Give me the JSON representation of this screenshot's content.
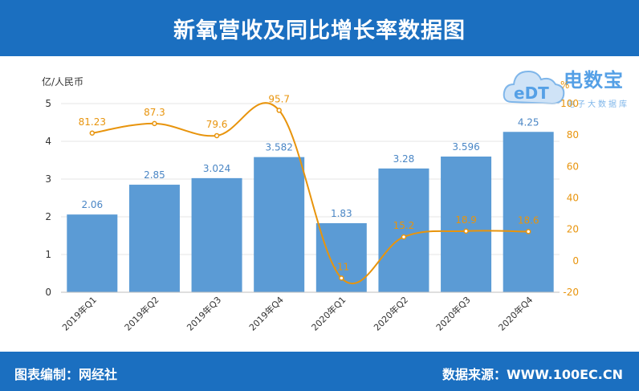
{
  "header": {
    "title": "新氧营收及同比增长率数据图"
  },
  "footer": {
    "left": "图表编制：网经社",
    "right": "数据来源：WWW.100EC.CN"
  },
  "logo": {
    "main": "电数宝",
    "sub": "电子大数据库",
    "badge": "eDT"
  },
  "colors": {
    "bar": "#5b9bd5",
    "line": "#e8940c",
    "header": "#1b6fc0"
  },
  "chart_data": {
    "type": "bar",
    "categories": [
      "2019年Q1",
      "2019年Q2",
      "2019年Q3",
      "2019年Q4",
      "2020年Q1",
      "2020年Q2",
      "2020年Q3",
      "2020年Q4"
    ],
    "series": [
      {
        "values": [
          2.06,
          2.85,
          3.024,
          3.582,
          1.83,
          3.28,
          3.596,
          4.25
        ],
        "labels": [
          "2.06",
          "2.85",
          "3.024",
          "3.582",
          "1.83",
          "3.28",
          "3.596",
          "4.25"
        ],
        "axis": "left",
        "type": "bar"
      },
      {
        "values": [
          81.23,
          87.3,
          79.6,
          95.7,
          -11,
          15.2,
          18.9,
          18.6
        ],
        "labels": [
          "81.23",
          "87.3",
          "79.6",
          "95.7",
          "-11",
          "15.2",
          "18.9",
          "18.6"
        ],
        "axis": "right",
        "type": "line"
      }
    ],
    "y_left": {
      "label": "亿/人民币",
      "range": [
        0,
        5
      ],
      "ticks": [
        "0",
        "1",
        "2",
        "3",
        "4",
        "5"
      ]
    },
    "y_right": {
      "label": "%",
      "range": [
        -20,
        100
      ],
      "ticks": [
        "-20",
        "0",
        "20",
        "40",
        "60",
        "80",
        "100"
      ]
    },
    "grid": true
  }
}
